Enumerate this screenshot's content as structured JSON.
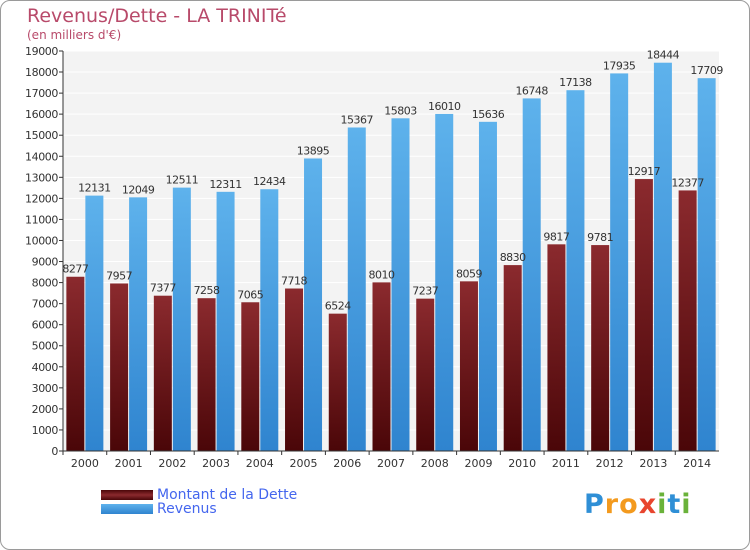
{
  "header": {
    "title": "Revenus/Dette - LA TRINITé",
    "subtitle": "(en milliers d'€)"
  },
  "chart_data": {
    "type": "bar",
    "title": "Revenus/Dette - LA TRINITé",
    "subtitle": "(en milliers d'€)",
    "xlabel": "",
    "ylabel": "",
    "ylim": [
      0,
      19000
    ],
    "yticks": [
      0,
      1000,
      2000,
      3000,
      4000,
      5000,
      6000,
      7000,
      8000,
      9000,
      10000,
      11000,
      12000,
      13000,
      14000,
      15000,
      16000,
      17000,
      18000,
      19000
    ],
    "grid": true,
    "legend_position": "bottom-left",
    "categories": [
      "2000",
      "2001",
      "2002",
      "2003",
      "2004",
      "2005",
      "2006",
      "2007",
      "2008",
      "2009",
      "2010",
      "2011",
      "2012",
      "2013",
      "2014"
    ],
    "series": [
      {
        "name": "Montant de la Dette",
        "color": "#7a1e1e",
        "values": [
          8277,
          7957,
          7377,
          7258,
          7065,
          7718,
          6524,
          8010,
          7237,
          8059,
          8830,
          9817,
          9781,
          12917,
          12377
        ],
        "labels": [
          "8277",
          "7957",
          "7377",
          "7258",
          "7065",
          "7718",
          "6524",
          "8010",
          "7237",
          "8059",
          "8830",
          "9817",
          "9781",
          "12917",
          "12377"
        ]
      },
      {
        "name": "Revenus",
        "color": "#4ea6e6",
        "values": [
          12131,
          12049,
          12511,
          12311,
          12434,
          13895,
          15367,
          15803,
          16010,
          15636,
          16748,
          17138,
          17935,
          18444,
          17709
        ],
        "labels": [
          "12131",
          "12049",
          "12511",
          "12311",
          "12434",
          "13895",
          "15367",
          "15803",
          "16010",
          "15636",
          "16748",
          "17138",
          "17935",
          "18444",
          "17709"
        ]
      }
    ]
  },
  "legend": {
    "debt_label": "Montant de la Dette",
    "revenue_label": "Revenus"
  },
  "logo": {
    "letters": [
      "P",
      "r",
      "o",
      "x",
      "i",
      "t",
      "i"
    ],
    "colors": [
      "#2f8fd6",
      "#f39a1e",
      "#f39a1e",
      "#e8452e",
      "#6ab23a",
      "#2f8fd6",
      "#6ab23a"
    ]
  }
}
